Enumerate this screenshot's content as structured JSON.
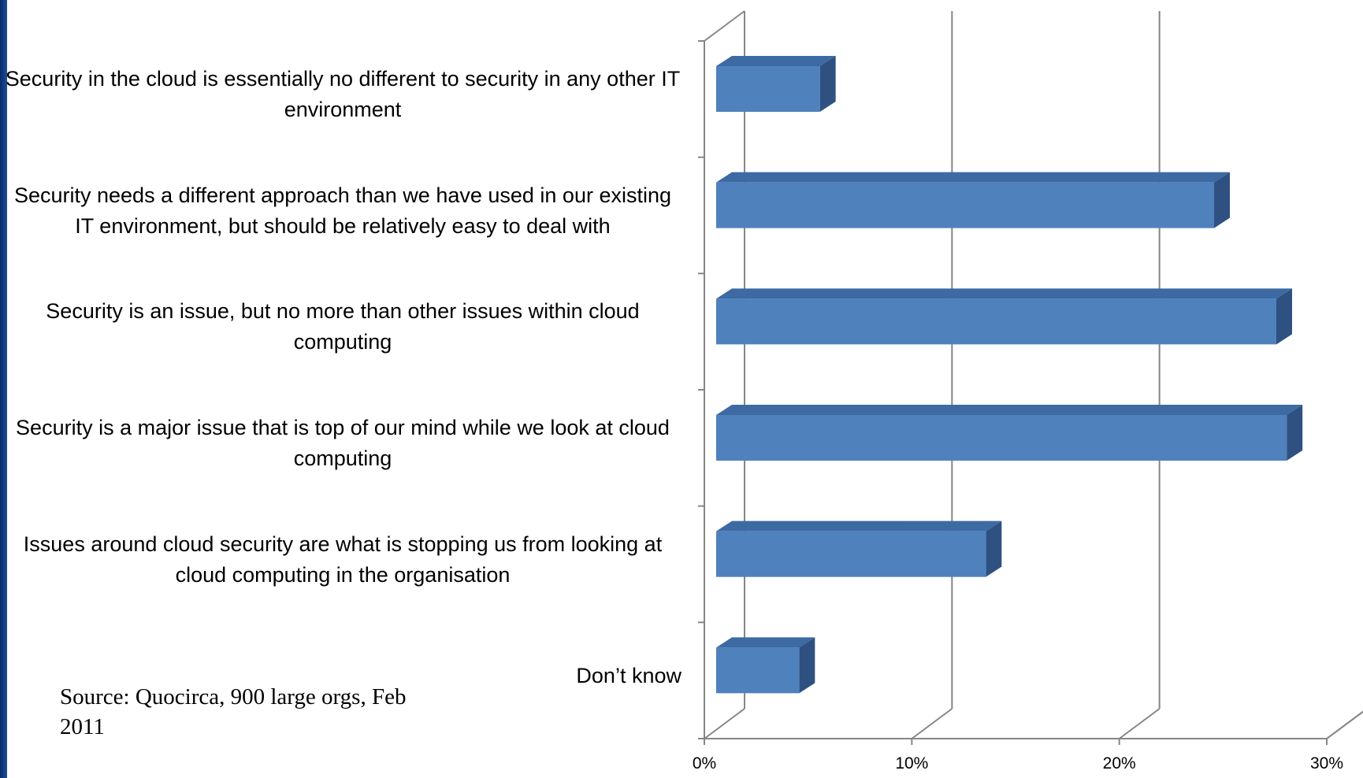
{
  "chart_data": {
    "type": "bar",
    "orientation": "horizontal",
    "categories": [
      "Security in the cloud is essentially no different to security in any other IT environment",
      "Security needs a different approach than we have used in our existing IT environment, but should be relatively easy to deal with",
      "Security is an issue, but no more than other issues within cloud computing",
      "Security is a major issue that is top of our mind while we look at cloud computing",
      "Issues around cloud security are what is stopping us from looking at cloud computing in the organisation",
      "Don’t know"
    ],
    "values": [
      5,
      24,
      27,
      27.5,
      13,
      4
    ],
    "color": "#4f81bd",
    "xlim": [
      0,
      30
    ],
    "xticks": [
      {
        "value": 0,
        "label": "0%"
      },
      {
        "value": 10,
        "label": "10%"
      },
      {
        "value": 20,
        "label": "20%"
      },
      {
        "value": 30,
        "label": "30%"
      }
    ],
    "grid": true,
    "source": "Source: Quocirca, 900 large orgs, Feb 2011"
  }
}
